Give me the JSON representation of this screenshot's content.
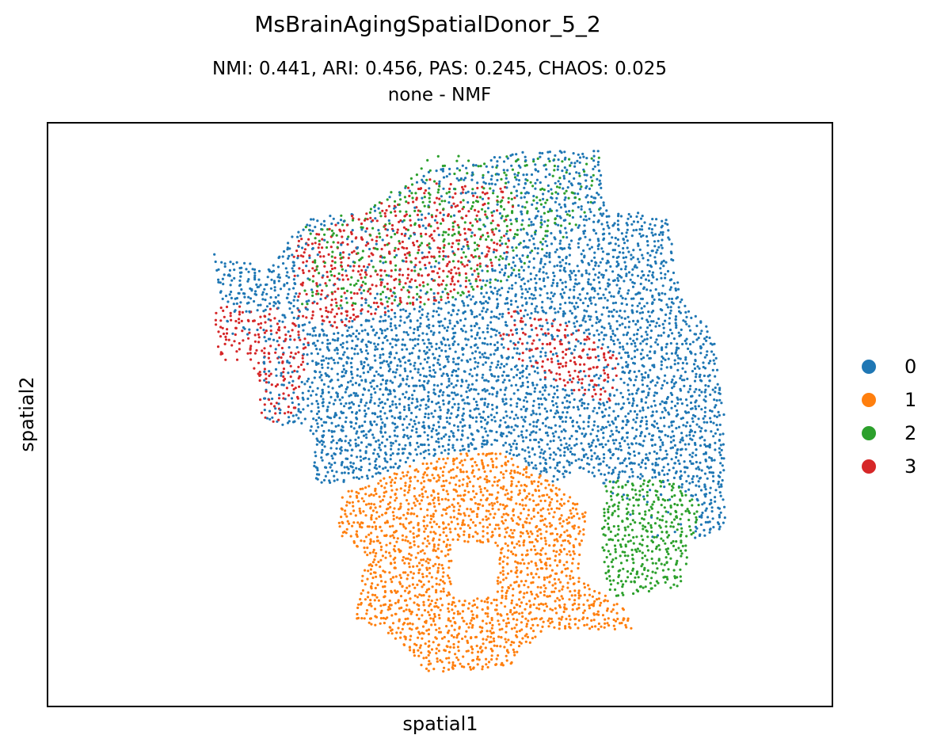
{
  "title": "MsBrainAgingSpatialDonor_5_2",
  "subtitle_line1": "NMI: 0.441,  ARI: 0.456,  PAS: 0.245,  CHAOS: 0.025",
  "subtitle_line2": "none - NMF",
  "chart_data": {
    "type": "scatter",
    "title": "MsBrainAgingSpatialDonor_5_2",
    "xlabel": "spatial1",
    "ylabel": "spatial2",
    "ticks_shown": false,
    "legend_position": "right",
    "legend": [
      {
        "label": "0",
        "color": "#1f77b4"
      },
      {
        "label": "1",
        "color": "#ff7f0e"
      },
      {
        "label": "2",
        "color": "#2ca02c"
      },
      {
        "label": "3",
        "color": "#d62728"
      }
    ],
    "regions": [
      {
        "cluster": "0",
        "density": 0.55,
        "polygon": [
          [
            0.65,
            0.01
          ],
          [
            0.78,
            0.01
          ],
          [
            0.79,
            0.11
          ],
          [
            0.9,
            0.14
          ],
          [
            0.92,
            0.28
          ],
          [
            0.98,
            0.35
          ],
          [
            1.0,
            0.52
          ],
          [
            1.0,
            0.72
          ],
          [
            0.9,
            0.74
          ],
          [
            0.82,
            0.64
          ],
          [
            0.75,
            0.58
          ],
          [
            0.7,
            0.62
          ],
          [
            0.6,
            0.56
          ],
          [
            0.48,
            0.58
          ],
          [
            0.38,
            0.62
          ],
          [
            0.28,
            0.63
          ],
          [
            0.27,
            0.52
          ],
          [
            0.19,
            0.52
          ],
          [
            0.19,
            0.35
          ],
          [
            0.13,
            0.36
          ],
          [
            0.1,
            0.2
          ],
          [
            0.2,
            0.23
          ],
          [
            0.26,
            0.14
          ],
          [
            0.37,
            0.12
          ],
          [
            0.48,
            0.05
          ]
        ]
      },
      {
        "cluster": "0",
        "density": 1.0,
        "polygon": [
          [
            0.3,
            0.35
          ],
          [
            0.5,
            0.33
          ],
          [
            0.55,
            0.42
          ],
          [
            0.62,
            0.52
          ],
          [
            0.7,
            0.56
          ],
          [
            0.78,
            0.52
          ],
          [
            0.88,
            0.5
          ],
          [
            0.98,
            0.5
          ],
          [
            1.0,
            0.72
          ],
          [
            0.86,
            0.74
          ],
          [
            0.78,
            0.62
          ],
          [
            0.74,
            0.6
          ],
          [
            0.7,
            0.63
          ],
          [
            0.6,
            0.56
          ],
          [
            0.48,
            0.58
          ],
          [
            0.38,
            0.62
          ],
          [
            0.29,
            0.63
          ],
          [
            0.29,
            0.5
          ]
        ]
      },
      {
        "cluster": "3",
        "density": 0.75,
        "polygon": [
          [
            0.37,
            0.12
          ],
          [
            0.48,
            0.06
          ],
          [
            0.64,
            0.08
          ],
          [
            0.62,
            0.2
          ],
          [
            0.55,
            0.28
          ],
          [
            0.45,
            0.3
          ],
          [
            0.32,
            0.34
          ],
          [
            0.25,
            0.32
          ],
          [
            0.24,
            0.18
          ]
        ]
      },
      {
        "cluster": "3",
        "density": 0.55,
        "polygon": [
          [
            0.1,
            0.3
          ],
          [
            0.22,
            0.3
          ],
          [
            0.27,
            0.36
          ],
          [
            0.25,
            0.5
          ],
          [
            0.19,
            0.52
          ],
          [
            0.17,
            0.4
          ],
          [
            0.11,
            0.4
          ]
        ]
      },
      {
        "cluster": "3",
        "density": 0.65,
        "polygon": [
          [
            0.62,
            0.3
          ],
          [
            0.74,
            0.34
          ],
          [
            0.82,
            0.4
          ],
          [
            0.8,
            0.48
          ],
          [
            0.72,
            0.45
          ],
          [
            0.66,
            0.42
          ],
          [
            0.6,
            0.36
          ]
        ]
      },
      {
        "cluster": "2",
        "density": 0.3,
        "polygon": [
          [
            0.48,
            0.02
          ],
          [
            0.78,
            0.02
          ],
          [
            0.78,
            0.12
          ],
          [
            0.62,
            0.25
          ],
          [
            0.48,
            0.3
          ],
          [
            0.25,
            0.3
          ],
          [
            0.26,
            0.15
          ],
          [
            0.36,
            0.12
          ],
          [
            0.45,
            0.06
          ]
        ]
      },
      {
        "cluster": "2",
        "density": 0.9,
        "polygon": [
          [
            0.79,
            0.62
          ],
          [
            0.9,
            0.62
          ],
          [
            0.96,
            0.67
          ],
          [
            0.92,
            0.82
          ],
          [
            0.8,
            0.84
          ],
          [
            0.78,
            0.76
          ]
        ]
      },
      {
        "cluster": "1",
        "density": 1.0,
        "hole": [
          [
            0.52,
            0.74
          ],
          [
            0.6,
            0.74
          ],
          [
            0.6,
            0.84
          ],
          [
            0.52,
            0.84
          ]
        ],
        "polygon": [
          [
            0.43,
            0.6
          ],
          [
            0.58,
            0.56
          ],
          [
            0.66,
            0.6
          ],
          [
            0.76,
            0.68
          ],
          [
            0.74,
            0.8
          ],
          [
            0.82,
            0.86
          ],
          [
            0.84,
            0.9
          ],
          [
            0.68,
            0.9
          ],
          [
            0.62,
            0.97
          ],
          [
            0.48,
            0.98
          ],
          [
            0.4,
            0.9
          ],
          [
            0.35,
            0.88
          ],
          [
            0.37,
            0.76
          ],
          [
            0.32,
            0.72
          ],
          [
            0.33,
            0.64
          ],
          [
            0.38,
            0.63
          ]
        ]
      }
    ]
  }
}
